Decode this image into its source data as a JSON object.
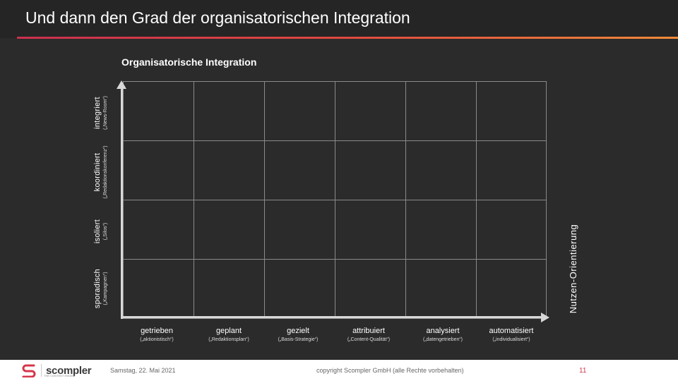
{
  "slide": {
    "title": "Und dann den Grad der organisatorischen Integration"
  },
  "chart": {
    "title": "Organisatorische Integration",
    "y_levels": [
      {
        "label": "integriert",
        "sub": "(„News-Room“)"
      },
      {
        "label": "koordiniert",
        "sub": "(„Redaktionskonferenz“)"
      },
      {
        "label": "isoliert",
        "sub": "(„Silos“)"
      },
      {
        "label": "sporadisch",
        "sub": "(„Kampagnen“)"
      }
    ],
    "x_levels": [
      {
        "label": "getrieben",
        "sub": "(„aktionistisch“)"
      },
      {
        "label": "geplant",
        "sub": "(„Redaktionsplan“)"
      },
      {
        "label": "gezielt",
        "sub": "(„Basis-Strategie“)"
      },
      {
        "label": "attribuiert",
        "sub": "(„Content-Qualität“)"
      },
      {
        "label": "analysiert",
        "sub": "(„datengetrieben“)"
      },
      {
        "label": "automatisiert",
        "sub": "(„individualisiert“)"
      }
    ],
    "right_axis_label": "Nutzen-Orientierung"
  },
  "footer": {
    "logo_text": "scompler",
    "logo_tagline": "THE CONTENT ENGINE",
    "date": "Samstag, 22. Mai 2021",
    "copyright": "copyright Scompler GmbH (alle Rechte vorbehalten)",
    "page_number": "11"
  },
  "colors": {
    "background": "#2b2b2b",
    "accent_start": "#c9304e",
    "accent_end": "#f08a3a",
    "page_number": "#d4374a"
  }
}
